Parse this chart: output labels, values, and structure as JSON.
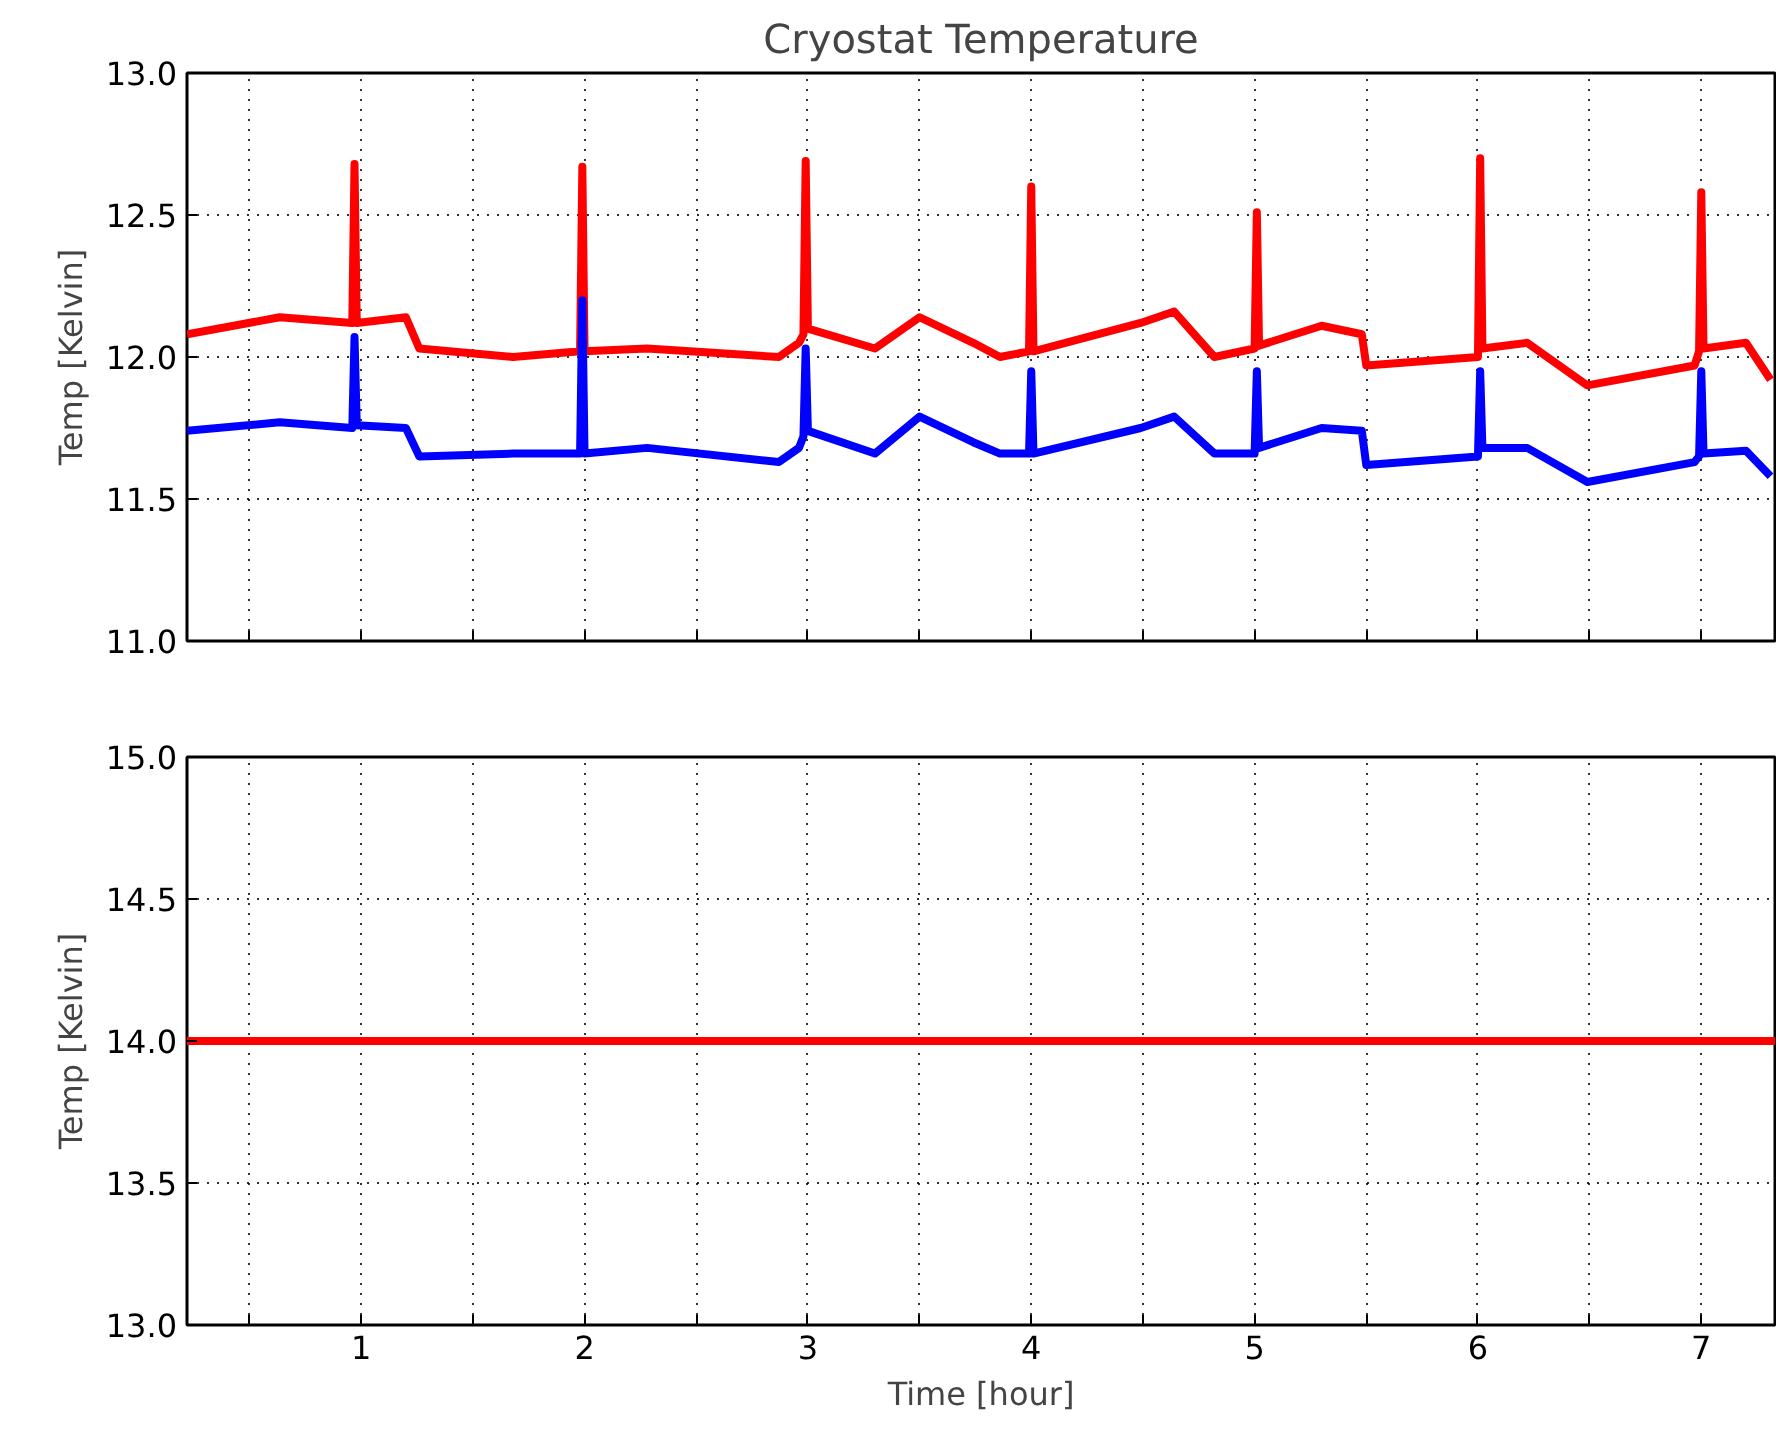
{
  "chart_data": [
    {
      "type": "line",
      "title": "Cryostat Temperature",
      "ylabel": "Temp [Kelvin]",
      "grid": true,
      "tick_labels": "y",
      "x": [
        0.22,
        0.635,
        0.96,
        0.97,
        0.98,
        1.2,
        1.26,
        1.68,
        1.98,
        1.99,
        2.0,
        2.28,
        2.87,
        2.96,
        2.98,
        2.99,
        3.0,
        3.3,
        3.5,
        3.74,
        3.86,
        3.99,
        4.0,
        4.01,
        4.49,
        4.64,
        4.82,
        5.0,
        5.01,
        5.02,
        5.3,
        5.48,
        5.5,
        6.0,
        6.01,
        6.02,
        6.22,
        6.49,
        6.97,
        6.99,
        7.0,
        7.01,
        7.2,
        7.31
      ],
      "series": [
        {
          "color": "#ff0000",
          "values": [
            12.08,
            12.14,
            12.12,
            12.68,
            12.12,
            12.14,
            12.03,
            12.0,
            12.02,
            12.67,
            12.02,
            12.03,
            12.0,
            12.05,
            12.08,
            12.69,
            12.1,
            12.03,
            12.14,
            12.05,
            12.0,
            12.02,
            12.6,
            12.02,
            12.12,
            12.16,
            12.0,
            12.03,
            12.51,
            12.04,
            12.11,
            12.08,
            11.97,
            12.0,
            12.7,
            12.03,
            12.05,
            11.9,
            11.97,
            12.02,
            12.58,
            12.03,
            12.05,
            11.92
          ]
        },
        {
          "color": "#0000ff",
          "values": [
            11.74,
            11.77,
            11.75,
            12.07,
            11.76,
            11.75,
            11.65,
            11.66,
            11.66,
            12.2,
            11.66,
            11.68,
            11.63,
            11.68,
            11.72,
            12.03,
            11.74,
            11.66,
            11.79,
            11.7,
            11.66,
            11.66,
            11.95,
            11.66,
            11.75,
            11.79,
            11.66,
            11.66,
            11.95,
            11.68,
            11.75,
            11.74,
            11.62,
            11.65,
            11.95,
            11.68,
            11.68,
            11.56,
            11.63,
            11.65,
            11.95,
            11.66,
            11.67,
            11.58
          ]
        }
      ],
      "xlim": [
        0.22,
        7.33
      ],
      "xticks": [
        {
          "value": 0.5,
          "label": null
        },
        1,
        {
          "value": 1.5,
          "label": null
        },
        2,
        {
          "value": 2.5,
          "label": null
        },
        3,
        {
          "value": 3.5,
          "label": null
        },
        4,
        {
          "value": 4.5,
          "label": null
        },
        5,
        {
          "value": 5.5,
          "label": null
        },
        6,
        {
          "value": 6.5,
          "label": null
        },
        7
      ],
      "ylim": [
        11.0,
        13.0
      ],
      "yticks": [
        {
          "value": 11,
          "label": "11.0"
        },
        11.5,
        {
          "value": 12,
          "label": "12.0"
        },
        12.5,
        {
          "value": 13,
          "label": "13.0"
        }
      ]
    },
    {
      "type": "line",
      "xlabel": "Time [hour]",
      "ylabel": "Temp [Kelvin]",
      "grid": true,
      "x": [
        0.22,
        7.33
      ],
      "series": [
        {
          "color": "#ff0000",
          "values": [
            14.0,
            14.0
          ]
        }
      ],
      "xlim": [
        0.22,
        7.33
      ],
      "xticks": [
        {
          "value": 0.5,
          "label": null
        },
        1,
        {
          "value": 1.5,
          "label": null
        },
        2,
        {
          "value": 2.5,
          "label": null
        },
        3,
        {
          "value": 3.5,
          "label": null
        },
        4,
        {
          "value": 4.5,
          "label": null
        },
        5,
        {
          "value": 5.5,
          "label": null
        },
        6,
        {
          "value": 6.5,
          "label": null
        },
        7
      ],
      "ylim": [
        13.0,
        15.0
      ],
      "yticks": [
        {
          "value": 13,
          "label": "13.0"
        },
        13.5,
        {
          "value": 14,
          "label": "14.0"
        },
        14.5,
        {
          "value": 15,
          "label": "15.0"
        }
      ]
    }
  ]
}
